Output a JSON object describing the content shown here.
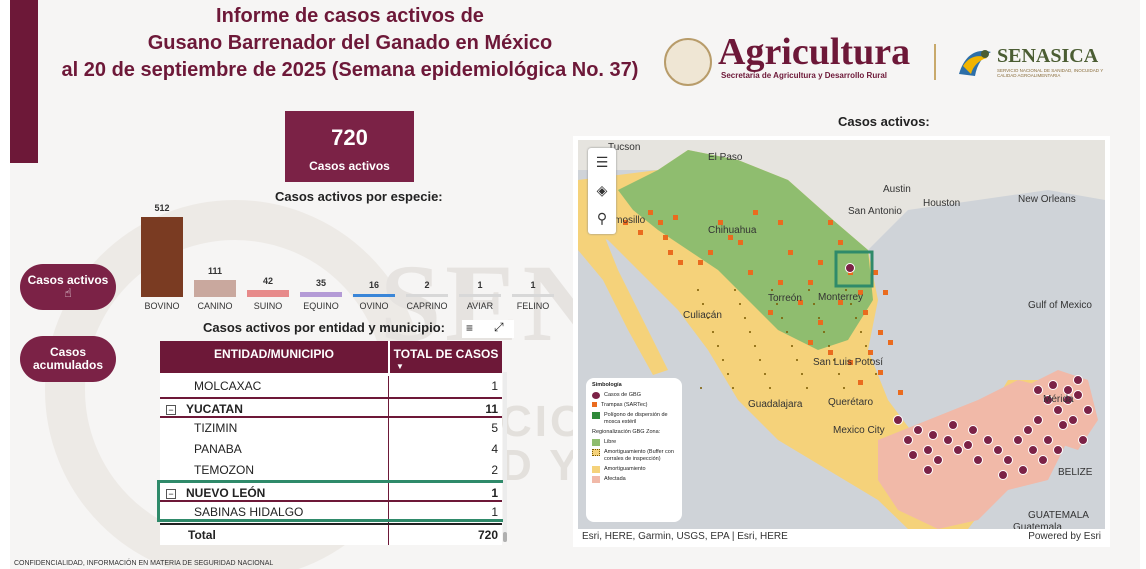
{
  "header": {
    "title_line1": "Informe de casos activos de",
    "title_line2": "Gusano Barrenador del Ganado en México",
    "title_line3": "al 20 de septiembre de 2025 (Semana epidemiológica No. 37)",
    "agency_name": "Agricultura",
    "agency_subtitle": "Secretaría de Agricultura y Desarrollo Rural",
    "senasica_name": "SENASICA",
    "senasica_subtitle": "SERVICIO NACIONAL DE SANIDAD, INOCUIDAD Y CALIDAD AGROALIMENTARIA"
  },
  "kpi": {
    "value": "720",
    "label": "Casos activos"
  },
  "nav": {
    "active_cases": "Casos activos",
    "accumulated_cases_line1": "Casos",
    "accumulated_cases_line2": "acumulados",
    "hand_icon": "pointer-hand-icon"
  },
  "species_title": "Casos activos por especie:",
  "table_title": "Casos activos por entidad y municipio:",
  "map_title": "Casos activos:",
  "chart_data": {
    "type": "bar",
    "title": "Casos activos por especie:",
    "categories": [
      "BOVINO",
      "CANINO",
      "SUINO",
      "EQUINO",
      "OVINO",
      "CAPRINO",
      "AVIAR",
      "FELINO"
    ],
    "values": [
      512,
      111,
      42,
      35,
      16,
      2,
      1,
      1
    ],
    "value_labels": [
      "512",
      "111",
      "42",
      "35",
      "16",
      "2",
      "1",
      "1"
    ],
    "colors": [
      "#7a3b22",
      "#c9a89e",
      "#e78a8a",
      "#b49bd6",
      "#3a86d8",
      "#d8d8d8",
      "#d8d8d8",
      "#d8d8d8"
    ],
    "ylim": [
      0,
      512
    ]
  },
  "table": {
    "headers": {
      "entity": "ENTIDAD/MUNICIPIO",
      "total": "TOTAL DE CASOS"
    },
    "rows": [
      {
        "name": "MOLCAXAC",
        "value": "1",
        "kind": "muni"
      },
      {
        "name": "YUCATAN",
        "value": "11",
        "kind": "state",
        "toggle": "−"
      },
      {
        "name": "TIZIMIN",
        "value": "5",
        "kind": "muni"
      },
      {
        "name": "PANABA",
        "value": "4",
        "kind": "muni"
      },
      {
        "name": "TEMOZON",
        "value": "2",
        "kind": "muni"
      },
      {
        "name": "NUEVO LEÓN",
        "value": "1",
        "kind": "state",
        "toggle": "−"
      },
      {
        "name": "SABINAS HIDALGO",
        "value": "1",
        "kind": "muni"
      }
    ],
    "total_label": "Total",
    "total_value": "720"
  },
  "map": {
    "labels": [
      "Tucson",
      "El Paso",
      "Austin",
      "San Antonio",
      "Houston",
      "New Orleans",
      "Hermosillo",
      "Chihuahua",
      "Culiacán",
      "Torreón",
      "Monterrey",
      "San Luis Potosí",
      "Guadalajara",
      "Querétaro",
      "Mexico City",
      "Gulf of Mexico",
      "Mérida",
      "BELIZE",
      "GUATEMALA",
      "Guatemala"
    ],
    "legend": {
      "title": "Simbología",
      "cases": "Casos de GBG",
      "traps": "Trampas (SARTec)",
      "polygon": "Polígono de dispersión de mosca estéril",
      "zone_title": "Regionalización GBG Zona:",
      "free": "Libre",
      "buffer": "Amortiguamiento (Buffer con corrales de inspección)",
      "buffer2": "Amortiguamiento",
      "affected": "Afectada"
    },
    "attribution": "Esri, HERE, Garmin, USGS, EPA | Esri, HERE",
    "powered": "Powered by Esri",
    "colors": {
      "free": "#8fbd6f",
      "buffer": "#f5d27a",
      "affected": "#f1b9a8",
      "case": "#7b2246",
      "trap": "#ea6b1e",
      "polygon": "#2f8a3a"
    }
  },
  "footer": "CONFIDENCIALIDAD, INFORMACIÓN EN MATERIA DE SEGURIDAD NACIONAL",
  "watermark": {
    "big": "SEN",
    "line1": "CIO",
    "line2": "D Y"
  }
}
